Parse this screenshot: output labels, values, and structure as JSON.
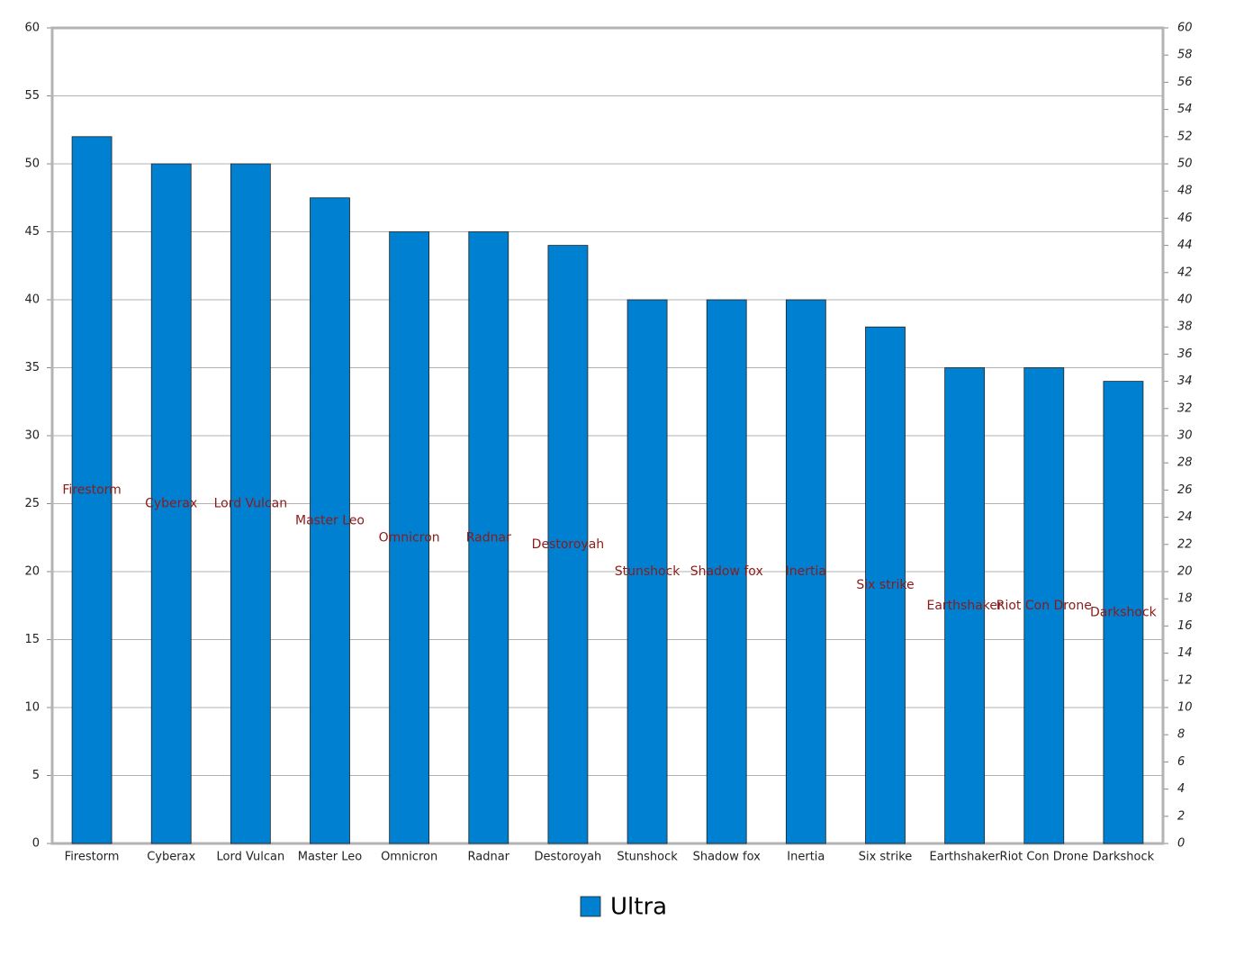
{
  "chart_data": {
    "type": "bar",
    "categories": [
      "Firestorm",
      "Cyberax",
      "Lord Vulcan",
      "Master Leo",
      "Omnicron",
      "Radnar",
      "Destoroyah",
      "Stunshock",
      "Shadow fox",
      "Inertia",
      "Six strike",
      "Earthshaker",
      "Riot Con Drone",
      "Darkshock"
    ],
    "series": [
      {
        "name": "Ultra",
        "color": "#0080d0",
        "values": [
          52,
          50,
          50,
          47.5,
          45,
          45,
          44,
          40,
          40,
          40,
          38,
          35,
          35,
          34
        ]
      }
    ],
    "ylim": [
      0,
      60
    ],
    "yticks": [
      0,
      5,
      10,
      15,
      20,
      25,
      30,
      35,
      40,
      45,
      50,
      55,
      60
    ],
    "y2lim": [
      0,
      60
    ],
    "y2ticks": [
      0,
      2,
      4,
      6,
      8,
      10,
      12,
      14,
      16,
      18,
      20,
      22,
      24,
      26,
      28,
      30,
      32,
      34,
      36,
      38,
      40,
      42,
      44,
      46,
      48,
      50,
      52,
      54,
      56,
      58,
      60
    ],
    "grid": true,
    "legend": "bottom"
  }
}
